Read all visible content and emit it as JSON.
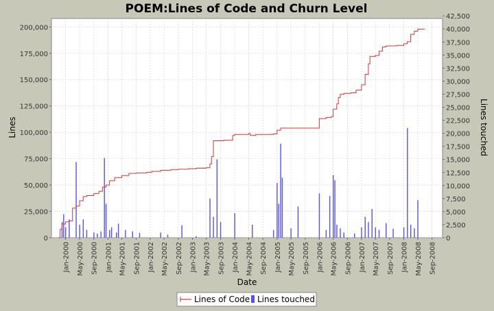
{
  "chart_data": {
    "type": "line",
    "title": "POEM:Lines of Code and Churn Level",
    "xlabel": "Date",
    "ylabel_left": "Lines",
    "ylabel_right": "Lines touched",
    "x_ticks": [
      "Jan-2000",
      "May-2000",
      "Sep-2000",
      "Jan-2001",
      "May-2001",
      "Sep-2001",
      "Jan-2002",
      "May-2002",
      "Sep-2002",
      "Jan-2003",
      "May-2003",
      "Sep-2003",
      "Jan-2004",
      "May-2004",
      "Sep-2004",
      "Jan-2005",
      "May-2005",
      "Sep-2005",
      "Jan-2006",
      "May-2006",
      "Sep-2006",
      "Jan-2007",
      "May-2007",
      "Sep-2007",
      "Jan-2008",
      "May-2008",
      "Sep-2008"
    ],
    "x_range": [
      "1999-09",
      "2008-12"
    ],
    "y_left_ticks": [
      "0",
      "25,000",
      "50,000",
      "75,000",
      "100,000",
      "125,000",
      "150,000",
      "175,000",
      "200,000"
    ],
    "y_left_range": [
      0,
      208000
    ],
    "y_right_ticks": [
      "0",
      "2,500",
      "5,000",
      "7,500",
      "10,000",
      "12,500",
      "15,000",
      "17,500",
      "20,000",
      "22,500",
      "25,000",
      "27,500",
      "30,000",
      "32,500",
      "35,000",
      "37,500",
      "40,000",
      "42,500"
    ],
    "y_right_range": [
      0,
      42000
    ],
    "legend_position": "bottom",
    "grid": true,
    "colors": {
      "loc": "#e03030",
      "touched": "#5050ff",
      "plot_bg": "#ffffff",
      "grid": "#d0d0d0",
      "page_bg": "#c8c8b8"
    },
    "series": [
      {
        "name": "Lines of Code",
        "kind": "line",
        "axis": "left",
        "points": [
          [
            "1999-11-01",
            0
          ],
          [
            "1999-11-15",
            8000
          ],
          [
            "1999-12-01",
            13000
          ],
          [
            "2000-01-01",
            15000
          ],
          [
            "2000-02-01",
            16000
          ],
          [
            "2000-03-01",
            28000
          ],
          [
            "2000-04-01",
            30000
          ],
          [
            "2000-05-01",
            35000
          ],
          [
            "2000-06-01",
            39000
          ],
          [
            "2000-07-01",
            40000
          ],
          [
            "2000-09-01",
            42000
          ],
          [
            "2000-10-15",
            44000
          ],
          [
            "2000-11-15",
            48000
          ],
          [
            "2000-12-15",
            50000
          ],
          [
            "2001-01-15",
            54000
          ],
          [
            "2001-03-01",
            57000
          ],
          [
            "2001-05-01",
            59000
          ],
          [
            "2001-07-01",
            61000
          ],
          [
            "2001-09-01",
            61500
          ],
          [
            "2001-12-01",
            62000
          ],
          [
            "2002-01-15",
            63000
          ],
          [
            "2002-04-01",
            64000
          ],
          [
            "2002-07-01",
            64500
          ],
          [
            "2002-09-01",
            65000
          ],
          [
            "2002-12-01",
            65500
          ],
          [
            "2003-02-01",
            66000
          ],
          [
            "2003-05-01",
            66500
          ],
          [
            "2003-06-01",
            70000
          ],
          [
            "2003-06-15",
            77000
          ],
          [
            "2003-07-01",
            92000
          ],
          [
            "2003-10-01",
            92500
          ],
          [
            "2003-12-15",
            97000
          ],
          [
            "2004-01-01",
            98000
          ],
          [
            "2004-05-01",
            99000
          ],
          [
            "2004-05-15",
            97000
          ],
          [
            "2004-07-01",
            98000
          ],
          [
            "2004-12-01",
            98500
          ],
          [
            "2005-01-01",
            102000
          ],
          [
            "2005-02-01",
            104000
          ],
          [
            "2005-06-01",
            104000
          ],
          [
            "2005-12-15",
            104000
          ],
          [
            "2006-01-01",
            113000
          ],
          [
            "2006-03-01",
            114000
          ],
          [
            "2006-04-15",
            115000
          ],
          [
            "2006-05-01",
            122000
          ],
          [
            "2006-06-01",
            127000
          ],
          [
            "2006-06-15",
            133000
          ],
          [
            "2006-07-01",
            136000
          ],
          [
            "2006-08-01",
            137000
          ],
          [
            "2006-10-01",
            137500
          ],
          [
            "2006-11-15",
            140000
          ],
          [
            "2007-01-01",
            145000
          ],
          [
            "2007-02-01",
            155000
          ],
          [
            "2007-03-01",
            165000
          ],
          [
            "2007-03-15",
            172000
          ],
          [
            "2007-05-01",
            173000
          ],
          [
            "2007-06-01",
            177000
          ],
          [
            "2007-07-01",
            181000
          ],
          [
            "2007-08-01",
            182000
          ],
          [
            "2007-11-01",
            182500
          ],
          [
            "2008-01-01",
            184000
          ],
          [
            "2008-02-01",
            186000
          ],
          [
            "2008-03-01",
            193000
          ],
          [
            "2008-04-01",
            196000
          ],
          [
            "2008-05-01",
            198000
          ],
          [
            "2008-07-01",
            198000
          ]
        ]
      },
      {
        "name": "Lines touched",
        "kind": "bar",
        "axis": "right",
        "points": [
          [
            "1999-12-01",
            3000
          ],
          [
            "1999-12-15",
            4500
          ],
          [
            "2000-01-01",
            2000
          ],
          [
            "2000-02-01",
            3500
          ],
          [
            "2000-04-01",
            14500
          ],
          [
            "2000-05-01",
            2500
          ],
          [
            "2000-06-01",
            3500
          ],
          [
            "2000-07-01",
            1500
          ],
          [
            "2000-09-01",
            1000
          ],
          [
            "2000-10-01",
            800
          ],
          [
            "2000-11-01",
            1200
          ],
          [
            "2000-12-01",
            15300
          ],
          [
            "2000-12-15",
            6500
          ],
          [
            "2001-01-15",
            1500
          ],
          [
            "2001-02-01",
            2000
          ],
          [
            "2001-03-15",
            1000
          ],
          [
            "2001-04-01",
            2700
          ],
          [
            "2001-06-01",
            1500
          ],
          [
            "2001-08-01",
            1200
          ],
          [
            "2001-10-01",
            900
          ],
          [
            "2002-04-01",
            1000
          ],
          [
            "2002-06-01",
            600
          ],
          [
            "2002-10-01",
            2400
          ],
          [
            "2003-02-01",
            300
          ],
          [
            "2003-06-01",
            7500
          ],
          [
            "2003-07-01",
            4000
          ],
          [
            "2003-08-01",
            15000
          ],
          [
            "2003-09-01",
            3000
          ],
          [
            "2004-01-01",
            4700
          ],
          [
            "2004-06-01",
            2500
          ],
          [
            "2004-12-01",
            1500
          ],
          [
            "2005-01-01",
            10500
          ],
          [
            "2005-01-15",
            6500
          ],
          [
            "2005-02-01",
            18000
          ],
          [
            "2005-02-15",
            11500
          ],
          [
            "2005-05-01",
            1800
          ],
          [
            "2005-07-01",
            6000
          ],
          [
            "2006-01-01",
            8500
          ],
          [
            "2006-03-01",
            1500
          ],
          [
            "2006-04-01",
            8000
          ],
          [
            "2006-05-01",
            12000
          ],
          [
            "2006-05-15",
            11000
          ],
          [
            "2006-06-01",
            2500
          ],
          [
            "2006-07-01",
            1800
          ],
          [
            "2006-08-01",
            1000
          ],
          [
            "2006-11-01",
            800
          ],
          [
            "2007-01-01",
            2000
          ],
          [
            "2007-02-01",
            4000
          ],
          [
            "2007-03-01",
            3000
          ],
          [
            "2007-04-01",
            5500
          ],
          [
            "2007-05-01",
            2000
          ],
          [
            "2007-06-01",
            1500
          ],
          [
            "2007-08-01",
            2800
          ],
          [
            "2007-10-01",
            1700
          ],
          [
            "2008-01-01",
            2000
          ],
          [
            "2008-02-01",
            21000
          ],
          [
            "2008-03-01",
            2500
          ],
          [
            "2008-04-01",
            1800
          ],
          [
            "2008-05-01",
            7200
          ]
        ]
      }
    ]
  }
}
